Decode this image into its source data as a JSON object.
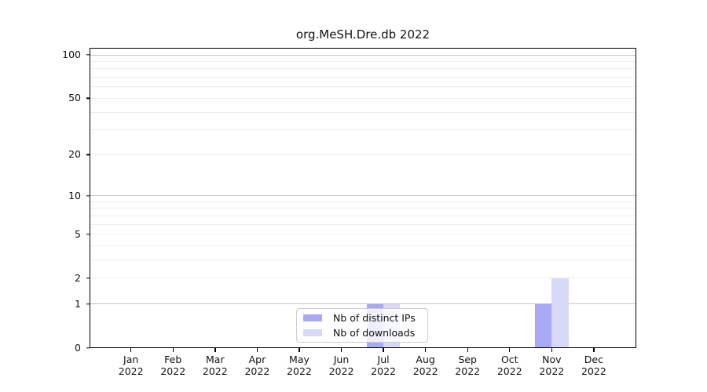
{
  "chart_data": {
    "type": "bar",
    "title": "org.MeSH.Dre.db 2022",
    "categories": [
      "Jan 2022",
      "Feb 2022",
      "Mar 2022",
      "Apr 2022",
      "May 2022",
      "Jun 2022",
      "Jul 2022",
      "Aug 2022",
      "Sep 2022",
      "Oct 2022",
      "Nov 2022",
      "Dec 2022"
    ],
    "series": [
      {
        "name": "Nb of distinct IPs",
        "color": "#a9a9f3",
        "values": [
          0,
          0,
          0,
          0,
          0,
          0,
          1,
          0,
          0,
          0,
          1,
          0
        ]
      },
      {
        "name": "Nb of downloads",
        "color": "#d8d8f8",
        "values": [
          0,
          0,
          0,
          0,
          0,
          0,
          1,
          0,
          0,
          0,
          2,
          0
        ]
      }
    ],
    "yticks": [
      0,
      1,
      2,
      5,
      10,
      20,
      50,
      100
    ],
    "minor_gridlines": [
      2,
      3,
      4,
      5,
      6,
      7,
      8,
      9,
      20,
      30,
      40,
      50,
      60,
      70,
      80,
      90
    ],
    "major_gridlines": [
      1,
      10,
      100
    ],
    "scale": "log1p",
    "ylim": [
      0,
      113
    ],
    "xlabel": "",
    "ylabel": "",
    "grid": true,
    "legend_position": "bottom-center",
    "colors": {
      "frame": "#000000",
      "major_grid": "#c6c6c6",
      "minor_grid": "#ededed",
      "background": "#ffffff"
    }
  }
}
